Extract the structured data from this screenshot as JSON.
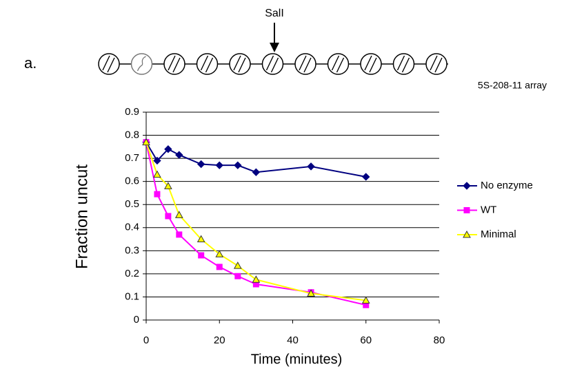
{
  "diagram": {
    "label": "a.",
    "site": "SalI"
  },
  "chart_data": {
    "type": "line",
    "annotation": "5S-208-11 array",
    "x_label": "Time (minutes)",
    "y_label": "Fraction uncut",
    "x": [
      0,
      3,
      6,
      9,
      15,
      20,
      25,
      30,
      45,
      60
    ],
    "series": [
      {
        "name": "No enzyme",
        "color": "#000080",
        "marker": "diamond",
        "values": [
          0.77,
          0.69,
          0.74,
          0.715,
          0.675,
          0.67,
          0.67,
          0.64,
          0.665,
          0.62
        ]
      },
      {
        "name": "WT",
        "color": "#ff00ff",
        "marker": "square",
        "values": [
          0.77,
          0.545,
          0.45,
          0.37,
          0.28,
          0.23,
          0.19,
          0.155,
          0.12,
          0.065
        ]
      },
      {
        "name": "Minimal",
        "color": "#ffff00",
        "marker": "triangle",
        "values": [
          0.77,
          0.63,
          0.58,
          0.455,
          0.35,
          0.285,
          0.235,
          0.175,
          0.115,
          0.085
        ]
      }
    ],
    "xlim": [
      0,
      80
    ],
    "xticks": [
      0,
      20,
      40,
      60,
      80
    ],
    "ylim": [
      0,
      0.9
    ],
    "yticks": [
      0,
      0.1,
      0.2,
      0.3,
      0.4,
      0.5,
      0.6,
      0.7,
      0.8,
      0.9
    ],
    "grid": true,
    "legend": "right"
  }
}
